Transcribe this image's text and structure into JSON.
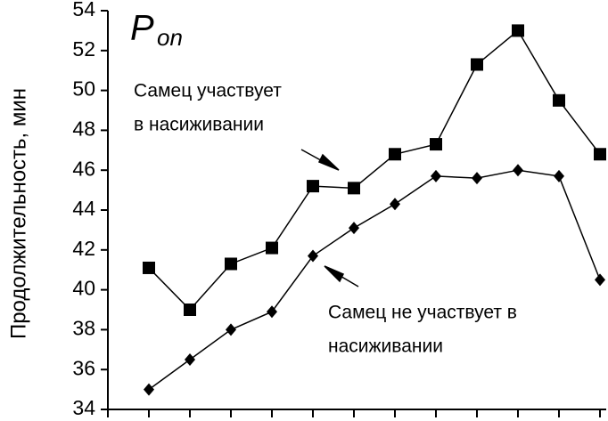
{
  "chart_data": {
    "type": "line",
    "title": "P",
    "title_sub": "on",
    "y_label": "Продолжительность, мин",
    "categories": [
      null,
      null,
      null,
      null,
      null,
      null,
      null,
      null,
      null,
      null,
      null,
      null
    ],
    "series": [
      {
        "marker": "square",
        "color": "#000000",
        "values": [
          41.1,
          39.0,
          41.3,
          42.1,
          45.2,
          45.1,
          46.8,
          47.3,
          51.3,
          53.0,
          49.5,
          46.8
        ]
      },
      {
        "marker": "diamond",
        "color": "#000000",
        "values": [
          35.0,
          36.5,
          38.0,
          38.9,
          41.7,
          43.1,
          44.3,
          45.7,
          45.6,
          46.0,
          45.7,
          40.5
        ]
      }
    ],
    "annotations": [
      [
        "Самец участвует",
        "в насиживании"
      ],
      [
        "Самец не участвует в",
        "насиживании"
      ]
    ],
    "ylim": [
      34,
      54
    ],
    "yticks": [
      34,
      36,
      38,
      40,
      42,
      44,
      46,
      48,
      50,
      52,
      54
    ]
  }
}
